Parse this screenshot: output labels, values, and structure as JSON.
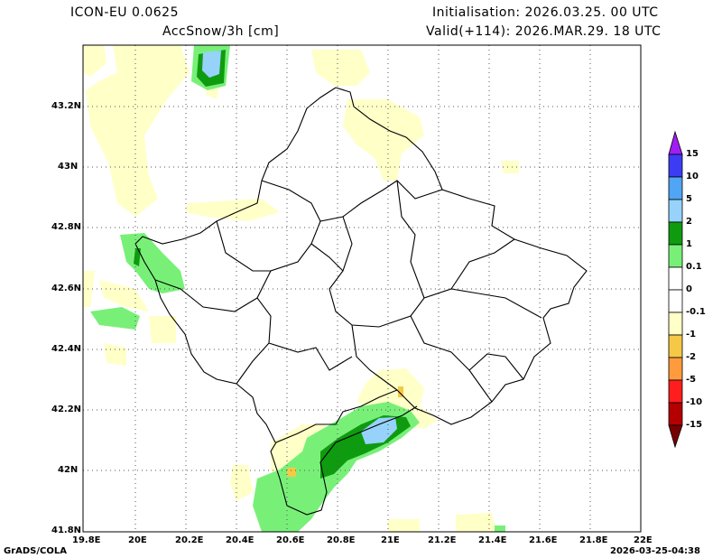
{
  "header": {
    "model": "ICON-EU 0.0625",
    "variable": "AccSnow/3h [cm]",
    "initialisation": "Initialisation: 2026.03.25. 00 UTC",
    "valid": "Valid(+114): 2026.MAR.29. 18 UTC"
  },
  "axes": {
    "lat_ticks": [
      "43.2N",
      "43N",
      "42.8N",
      "42.6N",
      "42.4N",
      "42.2N",
      "42N",
      "41.8N"
    ],
    "lon_ticks": [
      "19.8E",
      "20E",
      "20.2E",
      "20.4E",
      "20.6E",
      "20.8E",
      "21E",
      "21.2E",
      "21.4E",
      "21.6E",
      "21.8E",
      "22E"
    ]
  },
  "colorbar": {
    "labels": [
      "15",
      "10",
      "5",
      "2",
      "1",
      "0.1",
      "0",
      "-0.1",
      "-1",
      "-2",
      "-5",
      "-10",
      "-15"
    ],
    "colors": [
      "#3c3cf5",
      "#50a5f5",
      "#96d2fa",
      "#0f9b0f",
      "#78f078",
      "#ffffff",
      "#ffffff",
      "#ffffc8",
      "#f5c846",
      "#ff9b3c",
      "#ff1e1e",
      "#b40000"
    ],
    "top_arrow_color": "#a01ef5",
    "bottom_arrow_color": "#780000"
  },
  "footer": {
    "left": "GrADS/COLA",
    "right": "2026-03-25-04:38"
  }
}
